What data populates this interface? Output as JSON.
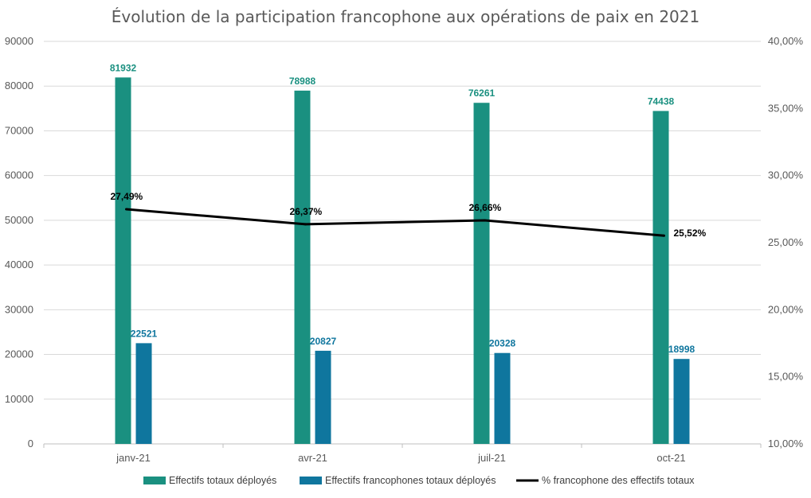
{
  "chart_data": {
    "type": "bar",
    "title": "Évolution de la participation francophone aux opérations de paix en 2021",
    "categories": [
      "janv-21",
      "avr-21",
      "juil-21",
      "oct-21"
    ],
    "series": [
      {
        "name": "Effectifs totaux déployés",
        "type": "bar",
        "axis": "left",
        "color": "#1a9080",
        "values": [
          81932,
          78988,
          76261,
          74438
        ],
        "labels": [
          "81932",
          "78988",
          "76261",
          "74438"
        ]
      },
      {
        "name": "Effectifs francophones totaux déployés",
        "type": "bar",
        "axis": "left",
        "color": "#0f769e",
        "values": [
          22521,
          20827,
          20328,
          18998
        ],
        "labels": [
          "22521",
          "20827",
          "20328",
          "18998"
        ]
      },
      {
        "name": "% francophone des effectifs totaux",
        "type": "line",
        "axis": "right",
        "color": "#000000",
        "values": [
          27.49,
          26.37,
          26.66,
          25.52
        ],
        "labels": [
          "27,49%",
          "26,37%",
          "26,66%",
          "25,52%"
        ]
      }
    ],
    "y_left": {
      "ylim": [
        0,
        90000
      ],
      "ticks": [
        "0",
        "10000",
        "20000",
        "30000",
        "40000",
        "50000",
        "60000",
        "70000",
        "80000",
        "90000"
      ]
    },
    "y_right": {
      "ylim": [
        10,
        40
      ],
      "ticks": [
        "10,00%",
        "15,00%",
        "20,00%",
        "25,00%",
        "30,00%",
        "35,00%",
        "40,00%"
      ]
    },
    "grid": true,
    "legend_position": "bottom"
  }
}
